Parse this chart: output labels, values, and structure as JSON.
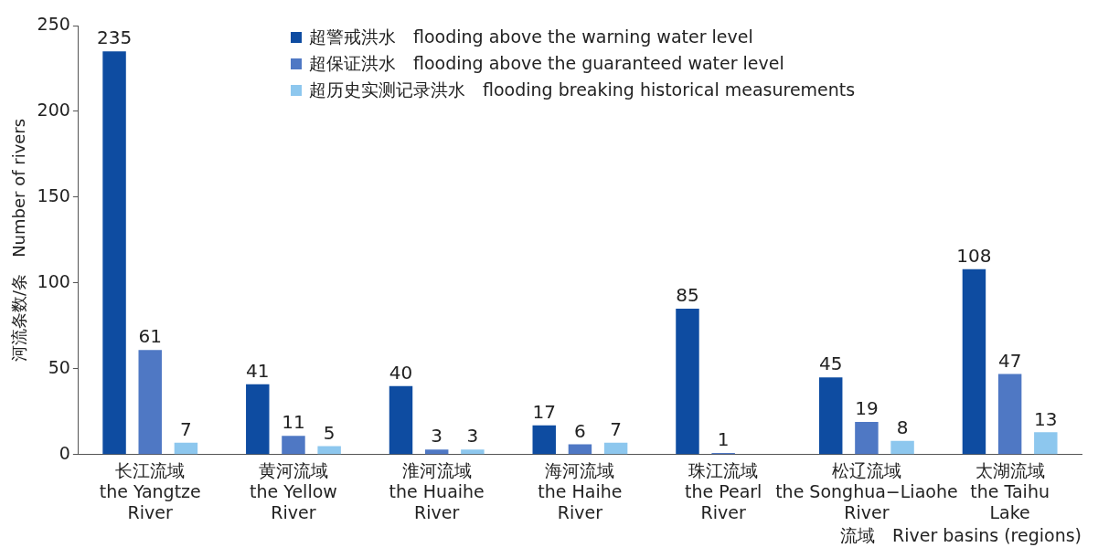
{
  "chart_data": {
    "type": "bar",
    "ylabel": "河流条数/条　Number of rivers",
    "xlabel": "流域　River basins (regions)",
    "categories": [
      "长江流域\nthe Yangtze\nRiver",
      "黄河流域\nthe Yellow\nRiver",
      "淮河流域\nthe Huaihe\nRiver",
      "海河流域\nthe Haihe\nRiver",
      "珠江流域\nthe Pearl\nRiver",
      "松辽流域\nthe Songhua−Liaohe\nRiver",
      "太湖流域\nthe Taihu\nLake"
    ],
    "series": [
      {
        "name": "超警戒洪水　flooding above the warning water level",
        "color": "#0e4ca1",
        "values": [
          235,
          41,
          40,
          17,
          85,
          45,
          108
        ]
      },
      {
        "name": "超保证洪水　flooding above the guaranteed water level",
        "color": "#4f78c4",
        "values": [
          61,
          11,
          3,
          6,
          1,
          19,
          47
        ]
      },
      {
        "name": "超历史实测记录洪水　flooding breaking historical measurements",
        "color": "#8dc7ee",
        "values": [
          7,
          5,
          3,
          7,
          null,
          8,
          13
        ]
      }
    ],
    "ylim": [
      0,
      250
    ],
    "yticks": [
      0,
      50,
      100,
      150,
      200,
      250
    ],
    "grid": false,
    "legend": "top",
    "data_labels": true
  }
}
